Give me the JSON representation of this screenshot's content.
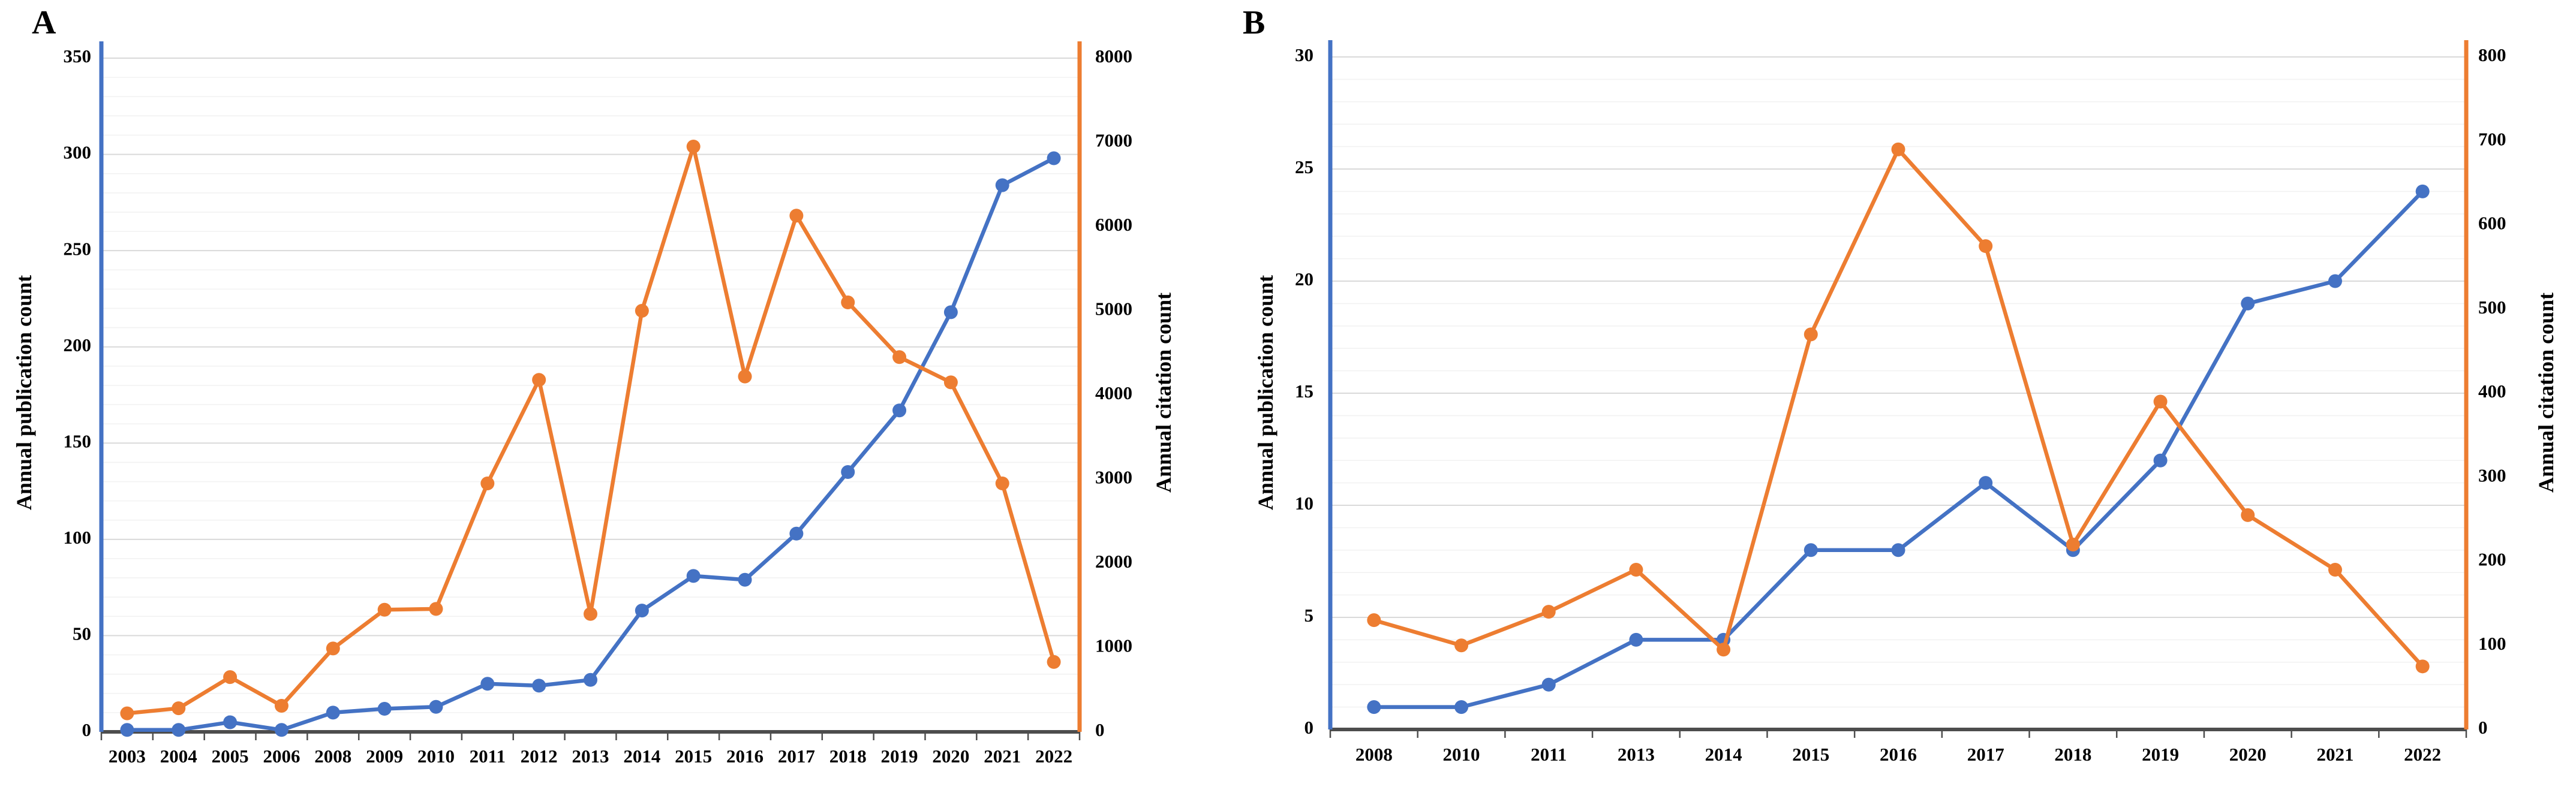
{
  "figure": {
    "background": "#ffffff",
    "panel_a_letter": "A",
    "panel_b_letter": "B"
  },
  "colors": {
    "publication_series": "#4472C4",
    "citation_series": "#ED7D31",
    "baseline": "#4d4d4d",
    "major_gridline": "#d9d9d9",
    "minor_gridline": "#f2f2f2",
    "tick_text": "#000000"
  },
  "chart_data": [
    {
      "type": "line",
      "panel_label": "A",
      "categories": [
        "2003",
        "2004",
        "2005",
        "2006",
        "2008",
        "2009",
        "2010",
        "2011",
        "2012",
        "2013",
        "2014",
        "2015",
        "2016",
        "2017",
        "2018",
        "2019",
        "2020",
        "2021",
        "2022"
      ],
      "series": [
        {
          "name": "Annual publication count",
          "axis": "left",
          "color": "#4472C4",
          "values": [
            1,
            1,
            5,
            1,
            10,
            12,
            13,
            25,
            24,
            27,
            63,
            81,
            79,
            103,
            135,
            167,
            218,
            284,
            298
          ]
        },
        {
          "name": "Annual citation count",
          "axis": "right",
          "color": "#ED7D31",
          "values": [
            220,
            280,
            650,
            310,
            990,
            1450,
            1460,
            2950,
            4180,
            1400,
            5000,
            6950,
            4220,
            6130,
            5100,
            4450,
            4150,
            2950,
            830
          ]
        }
      ],
      "left_axis": {
        "title": "Annual publication count",
        "min": 0,
        "max": 350,
        "major_step": 50,
        "minor_step": 10,
        "color": "#4472C4"
      },
      "right_axis": {
        "title": "Annual citation count",
        "min": 0,
        "max": 8000,
        "major_step": 1000,
        "minor_step": null,
        "color": "#ED7D31"
      },
      "grid": true,
      "legend": "none"
    },
    {
      "type": "line",
      "panel_label": "B",
      "categories": [
        "2008",
        "2010",
        "2011",
        "2013",
        "2014",
        "2015",
        "2016",
        "2017",
        "2018",
        "2019",
        "2020",
        "2021",
        "2022"
      ],
      "series": [
        {
          "name": "Annual publication count",
          "axis": "left",
          "color": "#4472C4",
          "values": [
            1,
            1,
            2,
            4,
            4,
            8,
            8,
            11,
            8,
            12,
            19,
            20,
            24
          ]
        },
        {
          "name": "Annual citation count",
          "axis": "right",
          "color": "#ED7D31",
          "values": [
            130,
            100,
            140,
            190,
            95,
            470,
            690,
            575,
            220,
            390,
            255,
            190,
            75
          ]
        }
      ],
      "left_axis": {
        "title": "Annual publication count",
        "min": 0,
        "max": 30,
        "major_step": 5,
        "minor_step": 1,
        "color": "#4472C4"
      },
      "right_axis": {
        "title": "Annual citation count",
        "min": 0,
        "max": 800,
        "major_step": 100,
        "minor_step": null,
        "color": "#ED7D31"
      },
      "grid": true,
      "legend": "none"
    }
  ]
}
